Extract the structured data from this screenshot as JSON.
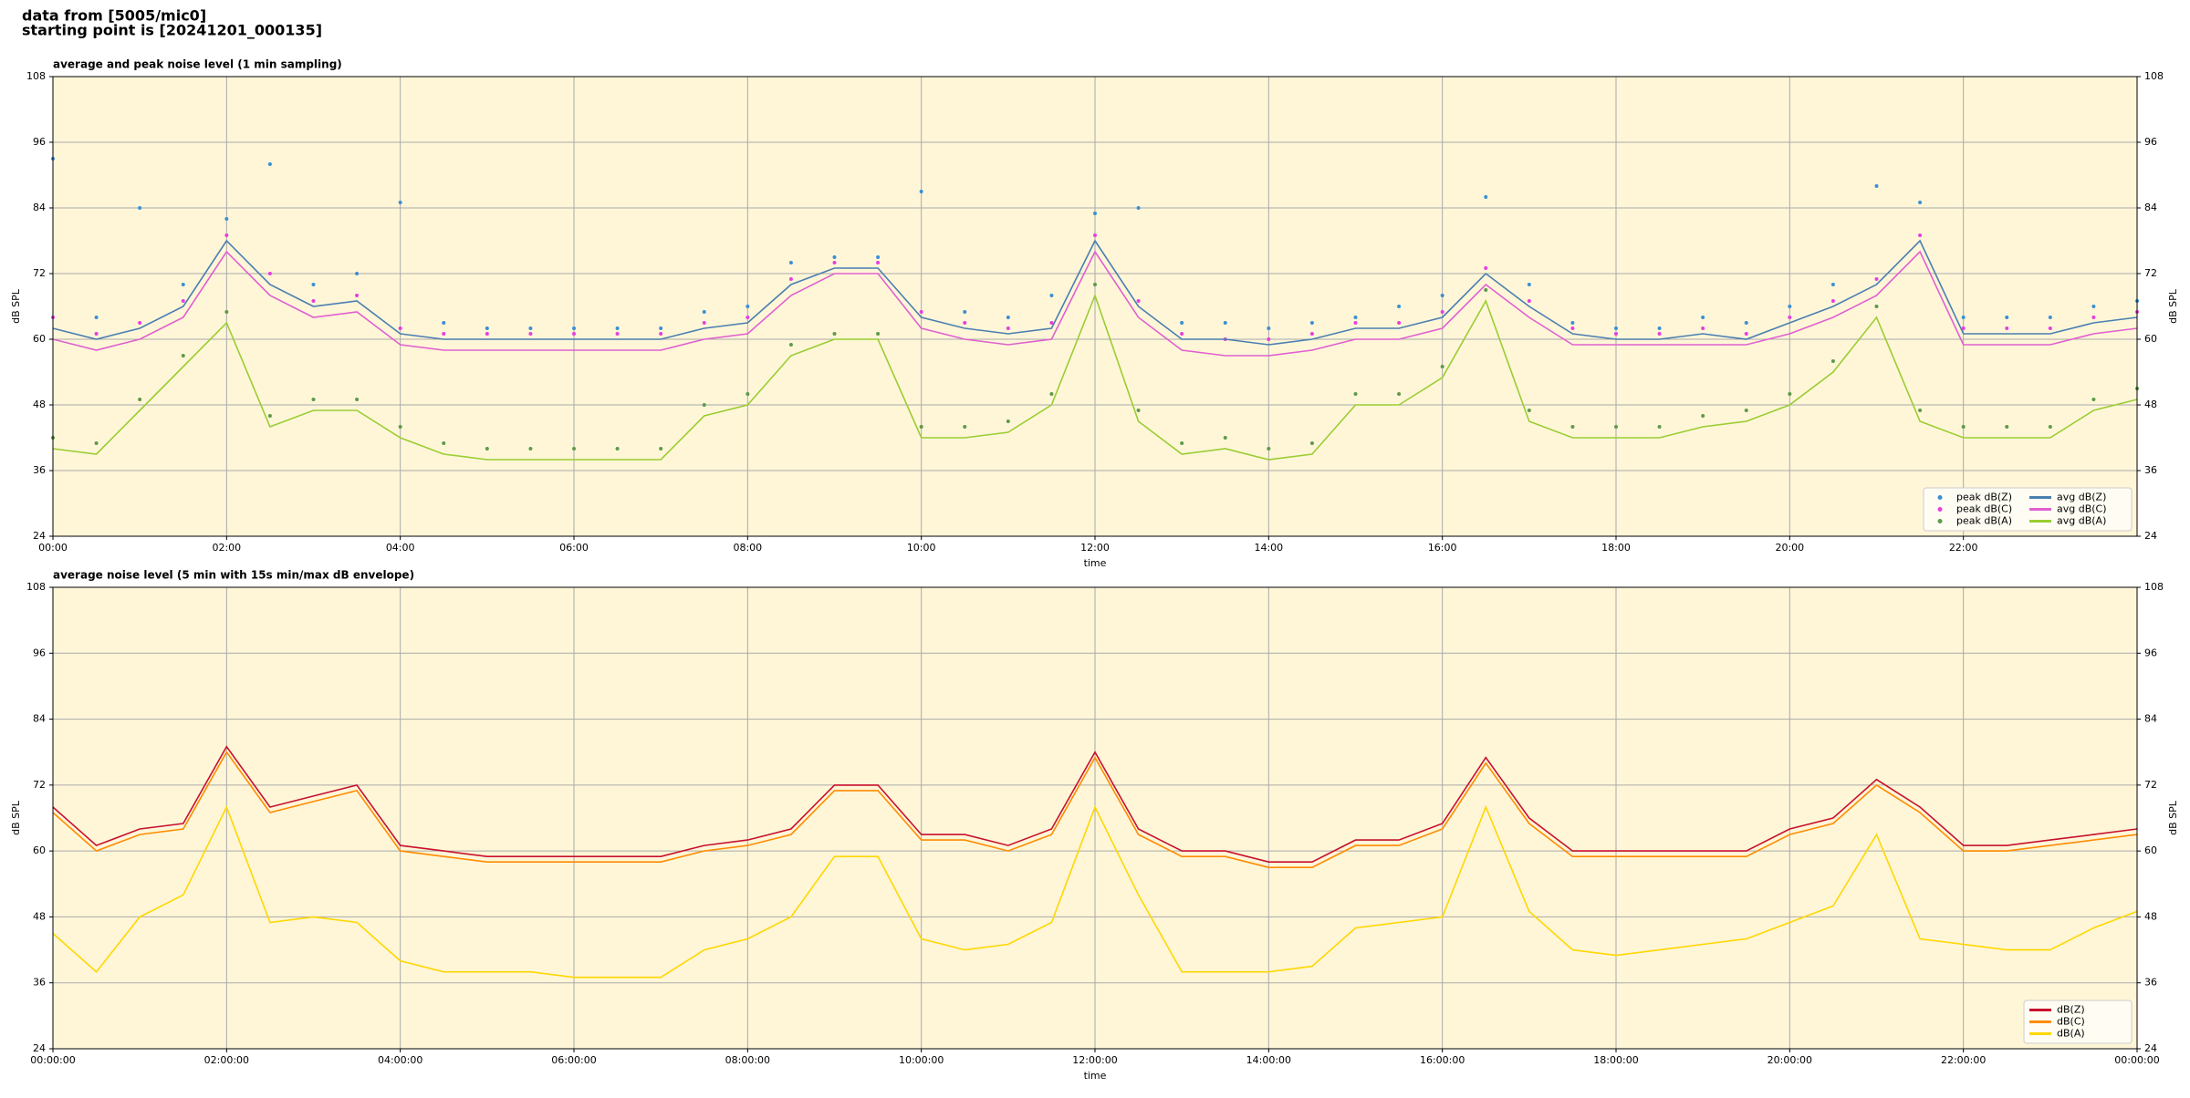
{
  "header": {
    "line1": "data from [5005/mic0]",
    "line2": "starting point is [20241201_000135]"
  },
  "chart_data": [
    {
      "type": "line",
      "title": "average and peak noise level (1 min sampling)",
      "xlabel": "time",
      "ylabel": "dB SPL",
      "x": [
        0,
        0.5,
        1,
        1.5,
        2,
        2.5,
        3,
        3.5,
        4,
        4.5,
        5,
        5.5,
        6,
        6.5,
        7,
        7.5,
        8,
        8.5,
        9,
        9.5,
        10,
        10.5,
        11,
        11.5,
        12,
        12.5,
        13,
        13.5,
        14,
        14.5,
        15,
        15.5,
        16,
        16.5,
        17,
        17.5,
        18,
        18.5,
        19,
        19.5,
        20,
        20.5,
        21,
        21.5,
        22,
        22.5,
        23,
        23.5,
        24
      ],
      "xlim": [
        0,
        24
      ],
      "xticks": [
        {
          "value": 0,
          "label": "00:00"
        },
        {
          "value": 2,
          "label": "02:00"
        },
        {
          "value": 4,
          "label": "04:00"
        },
        {
          "value": 6,
          "label": "06:00"
        },
        {
          "value": 8,
          "label": "08:00"
        },
        {
          "value": 10,
          "label": "10:00"
        },
        {
          "value": 12,
          "label": "12:00"
        },
        {
          "value": 14,
          "label": "14:00"
        },
        {
          "value": 16,
          "label": "16:00"
        },
        {
          "value": 18,
          "label": "18:00"
        },
        {
          "value": 20,
          "label": "20:00"
        },
        {
          "value": 22,
          "label": "22:00"
        }
      ],
      "ylim": [
        24,
        108
      ],
      "yticks": [
        24,
        36,
        48,
        60,
        72,
        84,
        96,
        108
      ],
      "grid": true,
      "legend": "lower right",
      "legend_columns": 2,
      "series": [
        {
          "name": "peak dB(Z)",
          "color": "#3b8fd6",
          "marker": "dot",
          "values": [
            93,
            64,
            84,
            70,
            82,
            92,
            70,
            72,
            85,
            63,
            62,
            62,
            62,
            62,
            62,
            65,
            66,
            74,
            75,
            75,
            87,
            65,
            64,
            68,
            83,
            84,
            63,
            63,
            62,
            63,
            64,
            66,
            68,
            86,
            70,
            63,
            62,
            62,
            64,
            63,
            66,
            70,
            88,
            85,
            64,
            64,
            64,
            66,
            67
          ]
        },
        {
          "name": "peak dB(C)",
          "color": "#e83ee0",
          "marker": "dot",
          "values": [
            64,
            61,
            63,
            67,
            79,
            72,
            67,
            68,
            62,
            61,
            61,
            61,
            61,
            61,
            61,
            63,
            64,
            71,
            74,
            74,
            65,
            63,
            62,
            63,
            79,
            67,
            61,
            60,
            60,
            61,
            63,
            63,
            65,
            73,
            67,
            62,
            61,
            61,
            62,
            61,
            64,
            67,
            71,
            79,
            62,
            62,
            62,
            64,
            65
          ]
        },
        {
          "name": "peak dB(A)",
          "color": "#5e9a4a",
          "marker": "dot",
          "values": [
            42,
            41,
            49,
            57,
            65,
            46,
            49,
            49,
            44,
            41,
            40,
            40,
            40,
            40,
            40,
            48,
            50,
            59,
            61,
            61,
            44,
            44,
            45,
            50,
            70,
            47,
            41,
            42,
            40,
            41,
            50,
            50,
            55,
            69,
            47,
            44,
            44,
            44,
            46,
            47,
            50,
            56,
            66,
            47,
            44,
            44,
            44,
            49,
            51
          ]
        },
        {
          "name": "avg dB(Z)",
          "color": "#4a7fb0",
          "marker": "line",
          "values": [
            62,
            60,
            62,
            66,
            78,
            70,
            66,
            67,
            61,
            60,
            60,
            60,
            60,
            60,
            60,
            62,
            63,
            70,
            73,
            73,
            64,
            62,
            61,
            62,
            78,
            66,
            60,
            60,
            59,
            60,
            62,
            62,
            64,
            72,
            66,
            61,
            60,
            60,
            61,
            60,
            63,
            66,
            70,
            78,
            61,
            61,
            61,
            63,
            64
          ]
        },
        {
          "name": "avg dB(C)",
          "color": "#e060d0",
          "marker": "line",
          "values": [
            60,
            58,
            60,
            64,
            76,
            68,
            64,
            65,
            59,
            58,
            58,
            58,
            58,
            58,
            58,
            60,
            61,
            68,
            72,
            72,
            62,
            60,
            59,
            60,
            76,
            64,
            58,
            57,
            57,
            58,
            60,
            60,
            62,
            70,
            64,
            59,
            59,
            59,
            59,
            59,
            61,
            64,
            68,
            76,
            59,
            59,
            59,
            61,
            62
          ]
        },
        {
          "name": "avg dB(A)",
          "color": "#9acd32",
          "marker": "line",
          "values": [
            40,
            39,
            47,
            55,
            63,
            44,
            47,
            47,
            42,
            39,
            38,
            38,
            38,
            38,
            38,
            46,
            48,
            57,
            60,
            60,
            42,
            42,
            43,
            48,
            68,
            45,
            39,
            40,
            38,
            39,
            48,
            48,
            53,
            67,
            45,
            42,
            42,
            42,
            44,
            45,
            48,
            54,
            64,
            45,
            42,
            42,
            42,
            47,
            49
          ]
        }
      ]
    },
    {
      "type": "line",
      "title": "average noise level (5 min with 15s min/max dB envelope)",
      "xlabel": "time",
      "ylabel": "dB SPL",
      "x": [
        0,
        0.5,
        1,
        1.5,
        2,
        2.5,
        3,
        3.5,
        4,
        4.5,
        5,
        5.5,
        6,
        6.5,
        7,
        7.5,
        8,
        8.5,
        9,
        9.5,
        10,
        10.5,
        11,
        11.5,
        12,
        12.5,
        13,
        13.5,
        14,
        14.5,
        15,
        15.5,
        16,
        16.5,
        17,
        17.5,
        18,
        18.5,
        19,
        19.5,
        20,
        20.5,
        21,
        21.5,
        22,
        22.5,
        23,
        23.5,
        24
      ],
      "xlim": [
        0,
        24
      ],
      "xticks": [
        {
          "value": 0,
          "label": "00:00:00"
        },
        {
          "value": 2,
          "label": "02:00:00"
        },
        {
          "value": 4,
          "label": "04:00:00"
        },
        {
          "value": 6,
          "label": "06:00:00"
        },
        {
          "value": 8,
          "label": "08:00:00"
        },
        {
          "value": 10,
          "label": "10:00:00"
        },
        {
          "value": 12,
          "label": "12:00:00"
        },
        {
          "value": 14,
          "label": "14:00:00"
        },
        {
          "value": 16,
          "label": "16:00:00"
        },
        {
          "value": 18,
          "label": "18:00:00"
        },
        {
          "value": 20,
          "label": "20:00:00"
        },
        {
          "value": 22,
          "label": "22:00:00"
        },
        {
          "value": 24,
          "label": "00:00:00"
        }
      ],
      "ylim": [
        24,
        108
      ],
      "yticks": [
        24,
        36,
        48,
        60,
        72,
        84,
        96,
        108
      ],
      "grid": true,
      "legend": "lower right",
      "legend_columns": 1,
      "series": [
        {
          "name": "dB(Z)",
          "color": "#c8102e",
          "marker": "line",
          "values": [
            68,
            61,
            64,
            65,
            79,
            68,
            70,
            72,
            61,
            60,
            59,
            59,
            59,
            59,
            59,
            61,
            62,
            64,
            72,
            72,
            63,
            63,
            61,
            64,
            78,
            64,
            60,
            60,
            58,
            58,
            62,
            62,
            65,
            77,
            66,
            60,
            60,
            60,
            60,
            60,
            64,
            66,
            73,
            68,
            61,
            61,
            62,
            63,
            64
          ]
        },
        {
          "name": "dB(C)",
          "color": "#ff8c00",
          "marker": "line",
          "values": [
            67,
            60,
            63,
            64,
            78,
            67,
            69,
            71,
            60,
            59,
            58,
            58,
            58,
            58,
            58,
            60,
            61,
            63,
            71,
            71,
            62,
            62,
            60,
            63,
            77,
            63,
            59,
            59,
            57,
            57,
            61,
            61,
            64,
            76,
            65,
            59,
            59,
            59,
            59,
            59,
            63,
            65,
            72,
            67,
            60,
            60,
            61,
            62,
            63
          ]
        },
        {
          "name": "dB(A)",
          "color": "#ffd700",
          "marker": "line",
          "values": [
            45,
            38,
            48,
            52,
            68,
            47,
            48,
            47,
            40,
            38,
            38,
            38,
            37,
            37,
            37,
            42,
            44,
            48,
            59,
            59,
            44,
            42,
            43,
            47,
            68,
            52,
            38,
            38,
            38,
            39,
            46,
            47,
            48,
            68,
            49,
            42,
            41,
            42,
            43,
            44,
            47,
            50,
            63,
            44,
            43,
            42,
            42,
            46,
            49
          ]
        }
      ]
    }
  ]
}
